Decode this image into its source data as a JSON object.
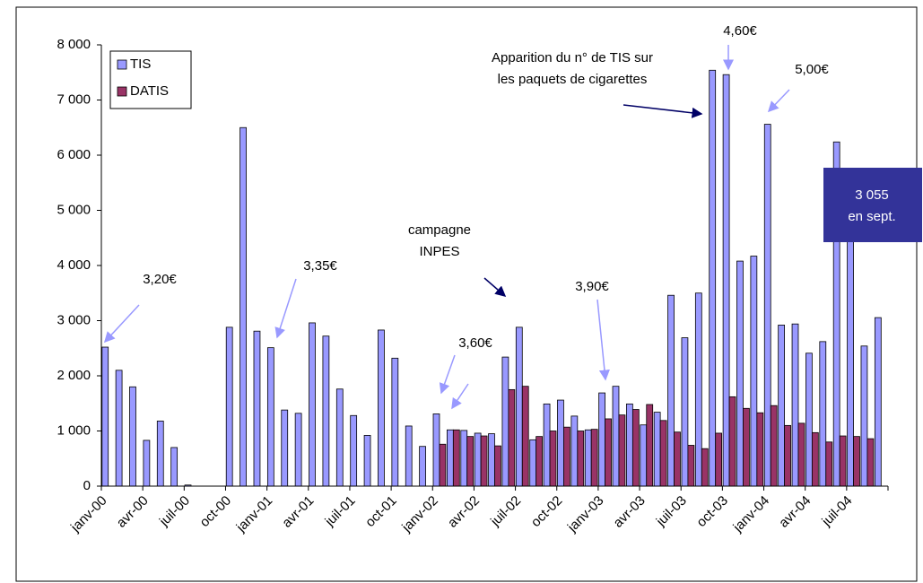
{
  "chart_data": {
    "type": "bar",
    "categories": [
      "janv-00",
      null,
      null,
      "avr-00",
      null,
      null,
      "juil-00",
      null,
      null,
      "oct-00",
      null,
      null,
      "janv-01",
      null,
      null,
      "avr-01",
      null,
      null,
      "juil-01",
      null,
      null,
      "oct-01",
      null,
      null,
      "janv-02",
      null,
      null,
      "avr-02",
      null,
      null,
      "juil-02",
      null,
      null,
      "oct-02",
      null,
      null,
      "janv-03",
      null,
      null,
      "avr-03",
      null,
      null,
      "juil-03",
      null,
      null,
      "oct-03",
      null,
      null,
      "janv-04",
      null,
      null,
      "avr-04",
      null,
      null,
      "juil-04",
      null,
      null
    ],
    "series": [
      {
        "name": "TIS",
        "color": "#9999ff",
        "values": [
          2520,
          2100,
          1800,
          830,
          1180,
          700,
          20,
          0,
          0,
          2880,
          6500,
          2810,
          2510,
          1380,
          1320,
          2960,
          2720,
          1760,
          1280,
          920,
          2830,
          2320,
          1090,
          720,
          1310,
          1020,
          1010,
          960,
          950,
          2340,
          2880,
          840,
          1490,
          1560,
          1270,
          1020,
          1690,
          1810,
          1490,
          1110,
          1340,
          3460,
          2690,
          3500,
          7540,
          7460,
          4080,
          4170,
          6560,
          2920,
          2940,
          2410,
          2620,
          6240,
          4600,
          2540,
          3055
        ]
      },
      {
        "name": "DATIS",
        "color": "#993366",
        "values": [
          null,
          null,
          null,
          null,
          null,
          null,
          null,
          null,
          null,
          null,
          null,
          null,
          null,
          null,
          null,
          null,
          null,
          null,
          null,
          null,
          null,
          null,
          null,
          null,
          760,
          1020,
          900,
          910,
          730,
          1750,
          1810,
          900,
          1000,
          1070,
          1000,
          1030,
          1220,
          1290,
          1390,
          1480,
          1190,
          980,
          740,
          680,
          960,
          1620,
          1410,
          1330,
          1460,
          1100,
          1140,
          970,
          800,
          910,
          900,
          860,
          null
        ]
      }
    ],
    "ylim": [
      0,
      8000
    ],
    "yticks": [
      0,
      {
        "value": 1000,
        "label": "1 000"
      },
      {
        "value": 2000,
        "label": "2 000"
      },
      {
        "value": 3000,
        "label": "3 000"
      },
      {
        "value": 4000,
        "label": "4 000"
      },
      {
        "value": 5000,
        "label": "5 000"
      },
      {
        "value": 6000,
        "label": "6 000"
      },
      {
        "value": 7000,
        "label": "7 000"
      },
      {
        "value": 8000,
        "label": "8 000"
      }
    ],
    "legend": "top-left",
    "annotations": [
      {
        "lines": [
          "3,20€"
        ]
      },
      {
        "lines": [
          "3,35€"
        ]
      },
      {
        "lines": [
          "3,60€"
        ]
      },
      {
        "lines": [
          "campagne",
          "INPES"
        ]
      },
      {
        "lines": [
          "3,90€"
        ]
      },
      {
        "lines": [
          "Apparition du n° de TIS sur",
          "les paquets de cigarettes"
        ]
      },
      {
        "lines": [
          "4,60€"
        ]
      },
      {
        "lines": [
          "5,00€"
        ]
      },
      {
        "lines": [
          "3 055",
          "en sept."
        ]
      }
    ]
  }
}
